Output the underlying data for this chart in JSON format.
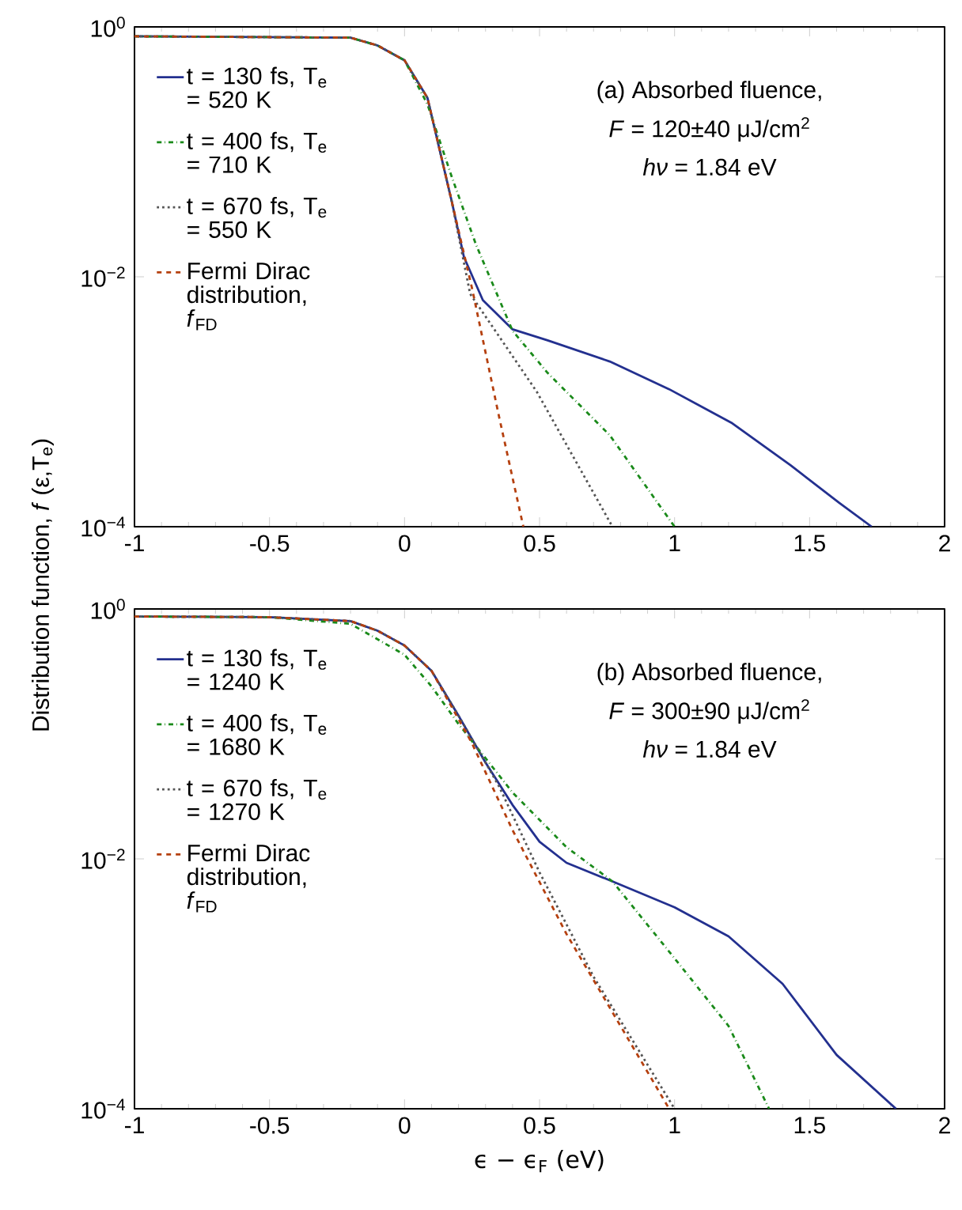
{
  "chart_data": [
    {
      "type": "line",
      "ylabel": "Distribution function, *f* (ε,T$_{e}$)",
      "log": "y",
      "legend": "left",
      "xlim": [
        -1,
        2
      ],
      "xticks": [
        -1,
        -0.5,
        0,
        0.5,
        1,
        1.5,
        2
      ],
      "ylim": [
        0.0001,
        1
      ],
      "yticks": [
        {
          "value": 0.0001,
          "label": "10$^{−4}$"
        },
        {
          "value": 0.01,
          "label": "10$^{−2}$"
        },
        {
          "value": 1,
          "label": "10$^{0}$"
        }
      ],
      "annotations": [
        "(a) Absorbed fluence,",
        "*F* = 120±40 μJ/cm$^{2}$",
        "*hν* = 1.84 eV"
      ],
      "series": [
        {
          "name": "t = 130 fs, T$_{e}$ = 520 K",
          "color": "#23308f",
          "line_style": "solid",
          "x": [
            -1,
            -0.2,
            -0.1,
            0,
            0.085,
            0.175,
            0.22,
            0.29,
            0.4,
            0.53,
            0.76,
            0.98,
            1.21,
            1.43,
            1.61,
            1.73
          ],
          "values": [
            0.84,
            0.82,
            0.71,
            0.54,
            0.27,
            0.04,
            0.0144,
            0.0065,
            0.0038,
            0.0031,
            0.0021,
            0.00126,
            0.00068,
            0.00031,
            0.000155,
            0.0001
          ]
        },
        {
          "name": "t = 400 fs, T$_{e}$ = 710 K",
          "color": "#1a8a1a",
          "line_style": "dashdot",
          "x": [
            -1,
            -0.2,
            -0.1,
            0,
            0.085,
            0.175,
            0.265,
            0.4,
            0.53,
            0.76,
            1.0
          ],
          "values": [
            0.84,
            0.82,
            0.71,
            0.54,
            0.24,
            0.063,
            0.018,
            0.0037,
            0.0017,
            0.00054,
            0.0001
          ]
        },
        {
          "name": "t = 670 fs, T$_{e}$ = 550 K",
          "color": "#555555",
          "line_style": "dotted",
          "x": [
            -1,
            -0.2,
            -0.1,
            0,
            0.085,
            0.175,
            0.243,
            0.49,
            0.77
          ],
          "values": [
            0.84,
            0.82,
            0.71,
            0.54,
            0.27,
            0.04,
            0.0073,
            0.0012,
            0.0001
          ]
        },
        {
          "name": "Fermi Dirac distribution, *f*$_{FD}$",
          "color": "#b5400f",
          "line_style": "dashed",
          "x": [
            -1,
            -0.2,
            -0.1,
            0,
            0.085,
            0.175,
            0.25,
            0.35,
            0.44
          ],
          "values": [
            0.84,
            0.82,
            0.71,
            0.54,
            0.27,
            0.04,
            0.0081,
            0.00076,
            0.0001
          ]
        }
      ]
    },
    {
      "type": "line",
      "xlabel": "ϵ − ϵ$_{F}$ (eV)",
      "log": "y",
      "legend": "left",
      "xlim": [
        -1,
        2
      ],
      "xticks": [
        -1,
        -0.5,
        0,
        0.5,
        1,
        1.5,
        2
      ],
      "ylim": [
        0.0001,
        1
      ],
      "yticks": [
        {
          "value": 0.0001,
          "label": "10$^{−4}$"
        },
        {
          "value": 0.01,
          "label": "10$^{−2}$"
        },
        {
          "value": 1,
          "label": "10$^{0}$"
        }
      ],
      "annotations": [
        "(b) Absorbed fluence,",
        "*F* = 300±90 μJ/cm$^{2}$",
        "*hν* = 1.84 eV"
      ],
      "series": [
        {
          "name": "t = 130 fs, T$_{e}$ = 1240 K",
          "color": "#23308f",
          "line_style": "solid",
          "x": [
            -1,
            -0.5,
            -0.2,
            -0.1,
            0,
            0.1,
            0.2,
            0.3,
            0.4,
            0.5,
            0.6,
            0.77,
            1.0,
            1.2,
            1.4,
            1.6,
            1.82
          ],
          "values": [
            0.87,
            0.86,
            0.8,
            0.67,
            0.51,
            0.32,
            0.14,
            0.059,
            0.027,
            0.0137,
            0.0093,
            0.0066,
            0.0041,
            0.0024,
            0.001,
            0.00027,
            0.0001
          ]
        },
        {
          "name": "t = 400 fs, T$_{e}$ = 1680 K",
          "color": "#1a8a1a",
          "line_style": "dashdot",
          "x": [
            -1,
            -0.5,
            -0.2,
            0,
            0.1,
            0.2,
            0.4,
            0.6,
            0.77,
            1.0,
            1.2,
            1.35
          ],
          "values": [
            0.87,
            0.86,
            0.76,
            0.43,
            0.24,
            0.12,
            0.034,
            0.0124,
            0.0066,
            0.0016,
            0.00046,
            0.0001
          ]
        },
        {
          "name": "t = 670 fs, T$_{e}$ = 1270 K",
          "color": "#555555",
          "line_style": "dotted",
          "x": [
            -1,
            -0.5,
            -0.2,
            -0.1,
            0,
            0.1,
            0.2,
            0.3,
            0.35,
            0.5,
            0.7,
            1.0
          ],
          "values": [
            0.87,
            0.86,
            0.8,
            0.67,
            0.51,
            0.32,
            0.14,
            0.059,
            0.038,
            0.0078,
            0.00114,
            0.0001
          ]
        },
        {
          "name": "Fermi Dirac distribution, *f*$_{FD}$",
          "color": "#b5400f",
          "line_style": "dashed",
          "x": [
            -1,
            -0.5,
            -0.2,
            -0.1,
            0,
            0.1,
            0.25,
            0.4,
            0.6,
            0.98
          ],
          "values": [
            0.87,
            0.86,
            0.8,
            0.67,
            0.51,
            0.32,
            0.084,
            0.017,
            0.0025,
            0.0001
          ]
        }
      ]
    }
  ]
}
